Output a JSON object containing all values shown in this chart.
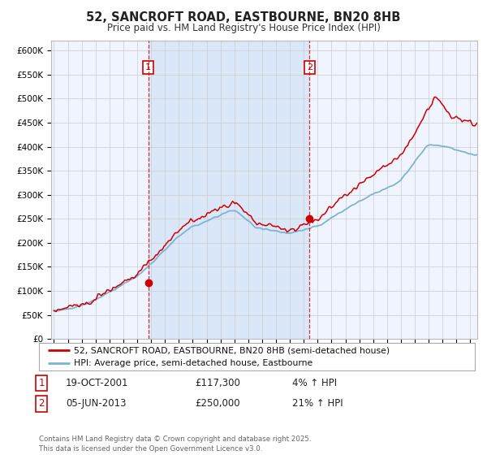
{
  "title": "52, SANCROFT ROAD, EASTBOURNE, BN20 8HB",
  "subtitle": "Price paid vs. HM Land Registry's House Price Index (HPI)",
  "ytick_labels": [
    "£0",
    "£50K",
    "£100K",
    "£150K",
    "£200K",
    "£250K",
    "£300K",
    "£350K",
    "£400K",
    "£450K",
    "£500K",
    "£550K",
    "£600K"
  ],
  "yticks": [
    0,
    50000,
    100000,
    150000,
    200000,
    250000,
    300000,
    350000,
    400000,
    450000,
    500000,
    550000,
    600000
  ],
  "sale_color": "#cc0000",
  "hpi_color": "#7fb3d3",
  "vline_color": "#cc0000",
  "shade_color": "#ddeeff",
  "sale1_x": 2001.8,
  "sale1_y": 117300,
  "sale2_x": 2013.42,
  "sale2_y": 250000,
  "legend1": "52, SANCROFT ROAD, EASTBOURNE, BN20 8HB (semi-detached house)",
  "legend2": "HPI: Average price, semi-detached house, Eastbourne",
  "note1_date": "19-OCT-2001",
  "note1_price": "£117,300",
  "note1_hpi": "4% ↑ HPI",
  "note2_date": "05-JUN-2013",
  "note2_price": "£250,000",
  "note2_hpi": "21% ↑ HPI",
  "footer": "Contains HM Land Registry data © Crown copyright and database right 2025.\nThis data is licensed under the Open Government Licence v3.0.",
  "xmin": 1994.8,
  "xmax": 2025.5,
  "ymin": 0,
  "ymax": 620000,
  "background_color": "#ffffff",
  "grid_color": "#cccccc",
  "chart_bg": "#f0f4ff"
}
